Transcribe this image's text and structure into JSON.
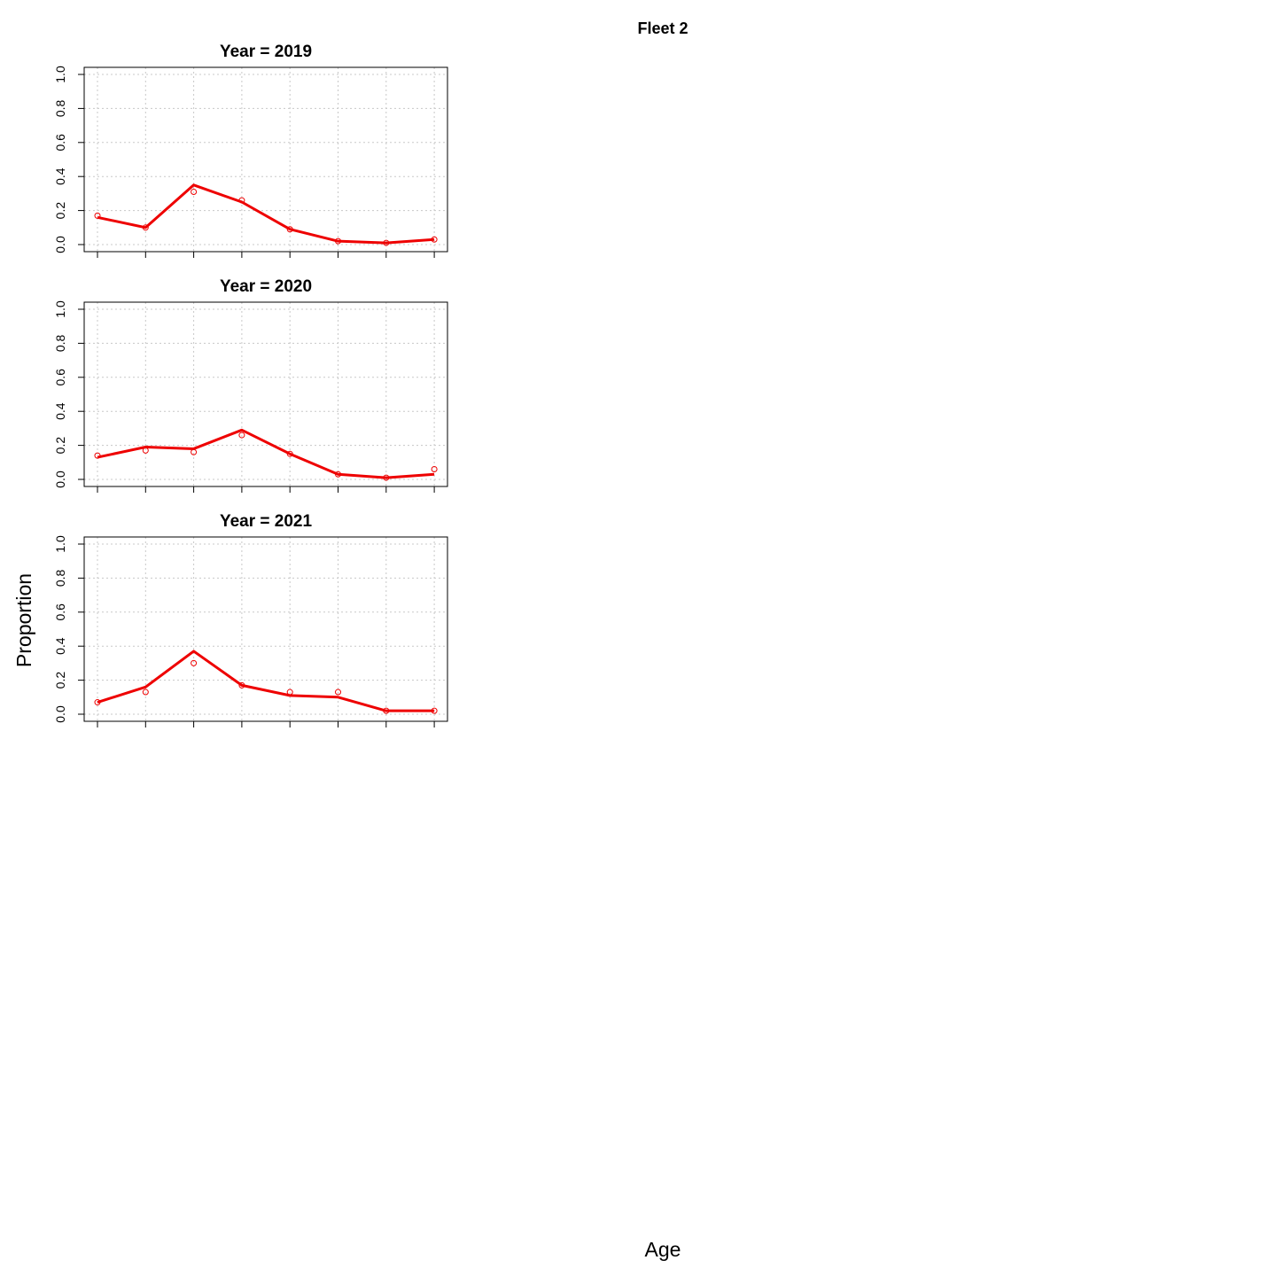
{
  "figure": {
    "main_title": "Fleet 2",
    "xlabel": "Age",
    "ylabel": "Proportion"
  },
  "chart_data": [
    {
      "type": "line",
      "title": "Year = 2019",
      "x": [
        1,
        2,
        3,
        4,
        5,
        6,
        7,
        8
      ],
      "ylim": [
        0,
        1
      ],
      "yticks": [
        "0.0",
        "0.2",
        "0.4",
        "0.6",
        "0.8",
        "1.0"
      ],
      "grid": true,
      "series": [
        {
          "kind": "predicted-line",
          "color": "#ee0000",
          "values": [
            0.16,
            0.1,
            0.35,
            0.25,
            0.09,
            0.02,
            0.01,
            0.03
          ]
        },
        {
          "kind": "observed-points",
          "color": "#ee0000",
          "values": [
            0.17,
            0.1,
            0.31,
            0.26,
            0.09,
            0.02,
            0.01,
            0.03
          ]
        }
      ]
    },
    {
      "type": "line",
      "title": "Year = 2020",
      "x": [
        1,
        2,
        3,
        4,
        5,
        6,
        7,
        8
      ],
      "ylim": [
        0,
        1
      ],
      "yticks": [
        "0.0",
        "0.2",
        "0.4",
        "0.6",
        "0.8",
        "1.0"
      ],
      "grid": true,
      "series": [
        {
          "kind": "predicted-line",
          "color": "#ee0000",
          "values": [
            0.13,
            0.19,
            0.18,
            0.29,
            0.15,
            0.03,
            0.01,
            0.03
          ]
        },
        {
          "kind": "observed-points",
          "color": "#ee0000",
          "values": [
            0.14,
            0.17,
            0.16,
            0.26,
            0.15,
            0.03,
            0.01,
            0.06
          ]
        }
      ]
    },
    {
      "type": "line",
      "title": "Year = 2021",
      "x": [
        1,
        2,
        3,
        4,
        5,
        6,
        7,
        8
      ],
      "ylim": [
        0,
        1
      ],
      "yticks": [
        "0.0",
        "0.2",
        "0.4",
        "0.6",
        "0.8",
        "1.0"
      ],
      "grid": true,
      "series": [
        {
          "kind": "predicted-line",
          "color": "#ee0000",
          "values": [
            0.07,
            0.16,
            0.37,
            0.17,
            0.11,
            0.1,
            0.02,
            0.02
          ]
        },
        {
          "kind": "observed-points",
          "color": "#ee0000",
          "values": [
            0.07,
            0.13,
            0.3,
            0.17,
            0.13,
            0.13,
            0.02,
            0.02
          ]
        }
      ]
    }
  ]
}
